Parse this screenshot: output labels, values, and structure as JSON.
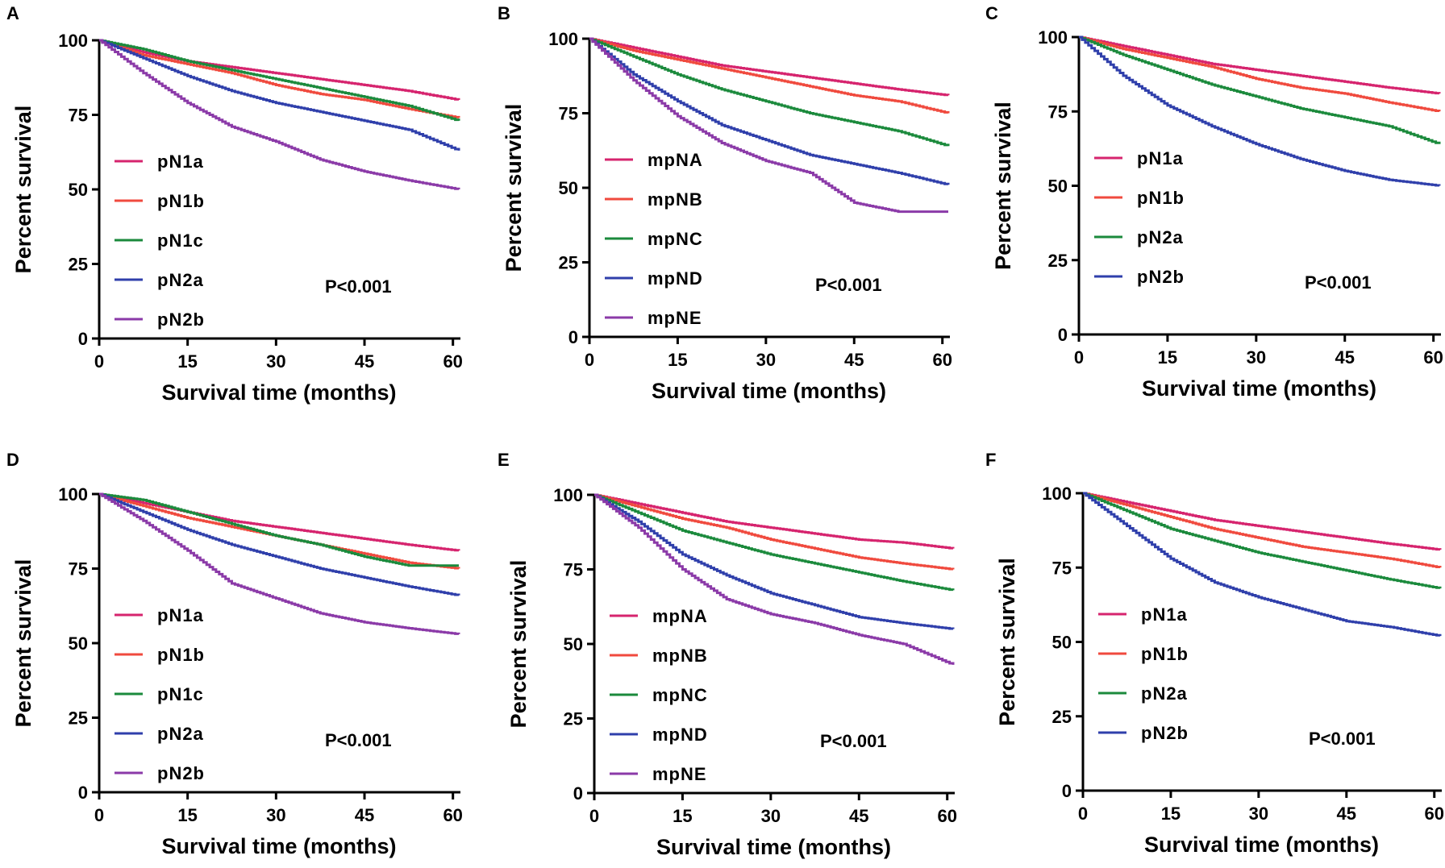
{
  "figure": {
    "panels": [
      {
        "letter": "A",
        "pvalue": "P<0.001",
        "xlabel": "Survival time (months)",
        "ylabel": "Percent survival"
      },
      {
        "letter": "B",
        "pvalue": "P<0.001",
        "xlabel": "Survival time (months)",
        "ylabel": "Percent survival"
      },
      {
        "letter": "C",
        "pvalue": "P<0.001",
        "xlabel": "Survival time (months)",
        "ylabel": "Percent survival"
      },
      {
        "letter": "D",
        "pvalue": "P<0.001",
        "xlabel": "Survival time (months)",
        "ylabel": "Percent survival"
      },
      {
        "letter": "E",
        "pvalue": "P<0.001",
        "xlabel": "Survival time (months)",
        "ylabel": "Percent survival"
      },
      {
        "letter": "F",
        "pvalue": "P<0.001",
        "xlabel": "Survival time (months)",
        "ylabel": "Percent survival"
      }
    ]
  },
  "colors": {
    "magenta": "#d6246e",
    "red": "#f04a3e",
    "green": "#1b8a3c",
    "blue": "#2f3fab",
    "purple": "#8b3aa8"
  },
  "chart_data": [
    {
      "type": "line",
      "panel": "A",
      "title": "",
      "xlabel": "Survival time (months)",
      "ylabel": "Percent survival",
      "xlim": [
        0,
        61
      ],
      "ylim": [
        0,
        100
      ],
      "xticks": [
        0,
        15,
        30,
        45,
        60
      ],
      "yticks": [
        0,
        25,
        50,
        75,
        100
      ],
      "annotation": "P<0.001",
      "legend_position": "bottom-left",
      "x": [
        0,
        7.5,
        15,
        22.5,
        30,
        37.5,
        45,
        52.5,
        61
      ],
      "series": [
        {
          "name": "pN1a",
          "color": "magenta",
          "values": [
            100,
            96,
            93,
            91,
            89,
            87,
            85,
            83,
            80
          ]
        },
        {
          "name": "pN1b",
          "color": "red",
          "values": [
            100,
            95,
            92,
            89,
            85,
            82,
            80,
            77,
            74
          ]
        },
        {
          "name": "pN1c",
          "color": "green",
          "values": [
            100,
            97,
            93,
            90,
            87,
            84,
            81,
            78,
            73
          ]
        },
        {
          "name": "pN2a",
          "color": "blue",
          "values": [
            100,
            94,
            88,
            83,
            79,
            76,
            73,
            70,
            63
          ]
        },
        {
          "name": "pN2b",
          "color": "purple",
          "values": [
            100,
            89,
            79,
            71,
            66,
            60,
            56,
            53,
            50
          ]
        }
      ]
    },
    {
      "type": "line",
      "panel": "B",
      "title": "",
      "xlabel": "Survival time (months)",
      "ylabel": "Percent survival",
      "xlim": [
        0,
        61
      ],
      "ylim": [
        0,
        100
      ],
      "xticks": [
        0,
        15,
        30,
        45,
        60
      ],
      "yticks": [
        0,
        25,
        50,
        75,
        100
      ],
      "annotation": "P<0.001",
      "legend_position": "bottom-left",
      "x": [
        0,
        7.5,
        15,
        22.5,
        30,
        37.5,
        45,
        52.5,
        61
      ],
      "series": [
        {
          "name": "mpNA",
          "color": "magenta",
          "values": [
            100,
            97,
            94,
            91,
            89,
            87,
            85,
            83,
            81
          ]
        },
        {
          "name": "mpNB",
          "color": "red",
          "values": [
            100,
            96,
            93,
            90,
            87,
            84,
            81,
            79,
            75
          ]
        },
        {
          "name": "mpNC",
          "color": "green",
          "values": [
            100,
            94,
            88,
            83,
            79,
            75,
            72,
            69,
            64
          ]
        },
        {
          "name": "mpND",
          "color": "blue",
          "values": [
            100,
            88,
            79,
            71,
            66,
            61,
            58,
            55,
            51
          ]
        },
        {
          "name": "mpNE",
          "color": "purple",
          "values": [
            100,
            86,
            74,
            65,
            59,
            55,
            45,
            42,
            42
          ]
        }
      ]
    },
    {
      "type": "line",
      "panel": "C",
      "title": "",
      "xlabel": "Survival time (months)",
      "ylabel": "Percent survival",
      "xlim": [
        0,
        61
      ],
      "ylim": [
        0,
        100
      ],
      "xticks": [
        0,
        15,
        30,
        45,
        60
      ],
      "yticks": [
        0,
        25,
        50,
        75,
        100
      ],
      "annotation": "P<0.001",
      "legend_position": "bottom-left",
      "x": [
        0,
        7.5,
        15,
        22.5,
        30,
        37.5,
        45,
        52.5,
        61
      ],
      "series": [
        {
          "name": "pN1a",
          "color": "magenta",
          "values": [
            100,
            97,
            94,
            91,
            89,
            87,
            85,
            83,
            81
          ]
        },
        {
          "name": "pN1b",
          "color": "red",
          "values": [
            100,
            96,
            93,
            90,
            86,
            83,
            81,
            78,
            75
          ]
        },
        {
          "name": "pN2a",
          "color": "green",
          "values": [
            100,
            94,
            89,
            84,
            80,
            76,
            73,
            70,
            64
          ]
        },
        {
          "name": "pN2b",
          "color": "blue",
          "values": [
            100,
            87,
            77,
            70,
            64,
            59,
            55,
            52,
            50
          ]
        }
      ]
    },
    {
      "type": "line",
      "panel": "D",
      "title": "",
      "xlabel": "Survival time (months)",
      "ylabel": "Percent survival",
      "xlim": [
        0,
        61
      ],
      "ylim": [
        0,
        100
      ],
      "xticks": [
        0,
        15,
        30,
        45,
        60
      ],
      "yticks": [
        0,
        25,
        50,
        75,
        100
      ],
      "annotation": "P<0.001",
      "legend_position": "bottom-left",
      "x": [
        0,
        7.5,
        15,
        22.5,
        30,
        37.5,
        45,
        52.5,
        61
      ],
      "series": [
        {
          "name": "pN1a",
          "color": "magenta",
          "values": [
            100,
            97,
            94,
            91,
            89,
            87,
            85,
            83,
            81
          ]
        },
        {
          "name": "pN1b",
          "color": "red",
          "values": [
            100,
            96,
            92,
            89,
            86,
            83,
            80,
            77,
            75
          ]
        },
        {
          "name": "pN1c",
          "color": "green",
          "values": [
            100,
            98,
            94,
            90,
            86,
            83,
            79,
            76,
            76
          ]
        },
        {
          "name": "pN2a",
          "color": "blue",
          "values": [
            100,
            94,
            88,
            83,
            79,
            75,
            72,
            69,
            66
          ]
        },
        {
          "name": "pN2b",
          "color": "purple",
          "values": [
            100,
            91,
            81,
            70,
            65,
            60,
            57,
            55,
            53
          ]
        }
      ]
    },
    {
      "type": "line",
      "panel": "E",
      "title": "",
      "xlabel": "Survival time (months)",
      "ylabel": "Percent survival",
      "xlim": [
        0,
        61
      ],
      "ylim": [
        0,
        100
      ],
      "xticks": [
        0,
        15,
        30,
        45,
        60
      ],
      "yticks": [
        0,
        25,
        50,
        75,
        100
      ],
      "annotation": "P<0.001",
      "legend_position": "bottom-left",
      "x": [
        0,
        7.5,
        15,
        22.5,
        30,
        37.5,
        45,
        52.5,
        61
      ],
      "series": [
        {
          "name": "mpNA",
          "color": "magenta",
          "values": [
            100,
            97,
            94,
            91,
            89,
            87,
            85,
            84,
            82
          ]
        },
        {
          "name": "mpNB",
          "color": "red",
          "values": [
            100,
            96,
            92,
            89,
            85,
            82,
            79,
            77,
            75
          ]
        },
        {
          "name": "mpNC",
          "color": "green",
          "values": [
            100,
            94,
            88,
            84,
            80,
            77,
            74,
            71,
            68
          ]
        },
        {
          "name": "mpND",
          "color": "blue",
          "values": [
            100,
            91,
            80,
            73,
            67,
            63,
            59,
            57,
            55
          ]
        },
        {
          "name": "mpNE",
          "color": "purple",
          "values": [
            100,
            89,
            75,
            65,
            60,
            57,
            53,
            50,
            43
          ]
        }
      ]
    },
    {
      "type": "line",
      "panel": "F",
      "title": "",
      "xlabel": "Survival time (months)",
      "ylabel": "Percent survival",
      "xlim": [
        0,
        61
      ],
      "ylim": [
        0,
        100
      ],
      "xticks": [
        0,
        15,
        30,
        45,
        60
      ],
      "yticks": [
        0,
        25,
        50,
        75,
        100
      ],
      "annotation": "P<0.001",
      "legend_position": "bottom-left",
      "x": [
        0,
        7.5,
        15,
        22.5,
        30,
        37.5,
        45,
        52.5,
        61
      ],
      "series": [
        {
          "name": "pN1a",
          "color": "magenta",
          "values": [
            100,
            97,
            94,
            91,
            89,
            87,
            85,
            83,
            81
          ]
        },
        {
          "name": "pN1b",
          "color": "red",
          "values": [
            100,
            96,
            92,
            88,
            85,
            82,
            80,
            78,
            75
          ]
        },
        {
          "name": "pN2a",
          "color": "green",
          "values": [
            100,
            94,
            88,
            84,
            80,
            77,
            74,
            71,
            68
          ]
        },
        {
          "name": "pN2b",
          "color": "blue",
          "values": [
            100,
            89,
            78,
            70,
            65,
            61,
            57,
            55,
            52
          ]
        }
      ]
    }
  ]
}
